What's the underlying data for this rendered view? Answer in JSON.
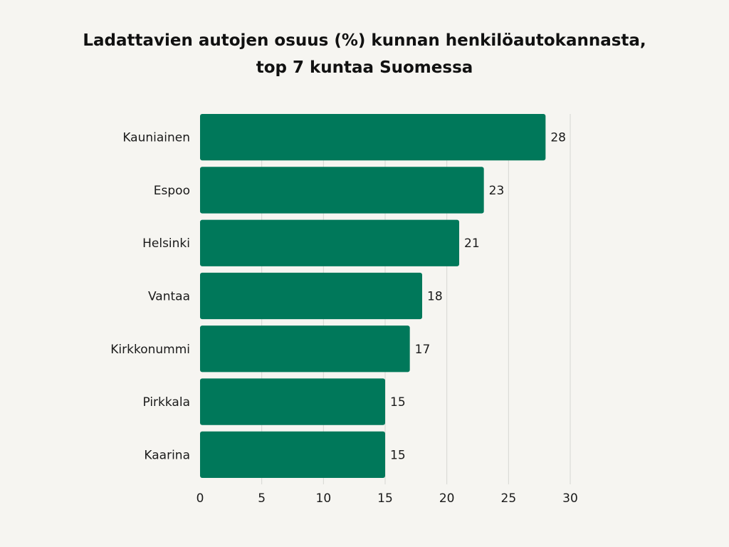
{
  "chart_data": {
    "type": "bar",
    "orientation": "horizontal",
    "title_lines": [
      "Ladattavien autojen osuus (%) kunnan henkilöautokannasta,",
      "top 7 kuntaa Suomessa"
    ],
    "categories": [
      "Kauniainen",
      "Espoo",
      "Helsinki",
      "Vantaa",
      "Kirkkonummi",
      "Pirkkala",
      "Kaarina"
    ],
    "values": [
      28,
      23,
      21,
      18,
      17,
      15,
      15
    ],
    "xlim": [
      0,
      30
    ],
    "xticks": [
      0,
      5,
      10,
      15,
      20,
      25,
      30
    ],
    "grid": true,
    "data_labels": true,
    "legend": "none",
    "bar_color": "#00785a",
    "grid_color": "#d6d6d2"
  }
}
